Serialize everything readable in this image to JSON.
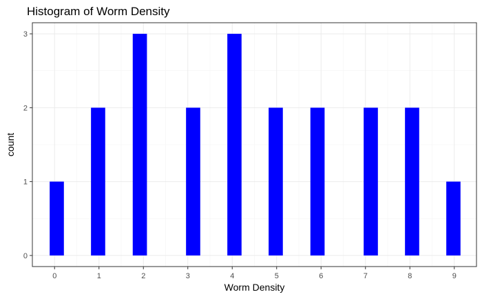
{
  "chart_data": {
    "type": "bar",
    "title": "Histogram of Worm Density",
    "xlabel": "Worm Density",
    "ylabel": "count",
    "categories": [
      "0",
      "1",
      "2",
      "3",
      "4",
      "5",
      "6",
      "7",
      "8",
      "9"
    ],
    "x": [
      0,
      1.0,
      2.0,
      3.0,
      4.0,
      5.0,
      6.0,
      7.0,
      8.0,
      9.0
    ],
    "bars": [
      {
        "x": 0.05,
        "count": 1
      },
      {
        "x": 0.98,
        "count": 2
      },
      {
        "x": 1.92,
        "count": 3
      },
      {
        "x": 3.12,
        "count": 2
      },
      {
        "x": 4.05,
        "count": 3
      },
      {
        "x": 4.98,
        "count": 2
      },
      {
        "x": 5.92,
        "count": 2
      },
      {
        "x": 7.12,
        "count": 2
      },
      {
        "x": 8.05,
        "count": 2
      },
      {
        "x": 8.98,
        "count": 1
      }
    ],
    "bar_width": 0.32,
    "xticks": [
      0,
      1,
      2,
      3,
      4,
      5,
      6,
      7,
      8,
      9
    ],
    "yticks": [
      0,
      1,
      2,
      3
    ],
    "xlim": [
      -0.5,
      9.5
    ],
    "ylim": [
      -0.15,
      3.15
    ],
    "bar_color": "#0000FF",
    "grid": true
  }
}
